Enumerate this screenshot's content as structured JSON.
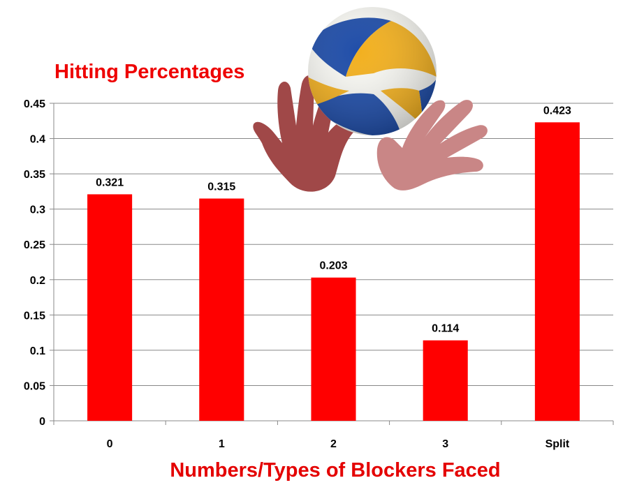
{
  "chart_data": {
    "type": "bar",
    "title": "Hitting Percentages",
    "xlabel": "Numbers/Types of Blockers Faced",
    "ylabel": "",
    "categories": [
      "0",
      "1",
      "2",
      "3",
      "Split"
    ],
    "values": [
      0.321,
      0.315,
      0.203,
      0.114,
      0.423
    ],
    "data_labels": [
      "0.321",
      "0.315",
      "0.203",
      "0.114",
      "0.423"
    ],
    "ylim": [
      0,
      0.45
    ],
    "yticks": [
      "0",
      "0.05",
      "0.1",
      "0.15",
      "0.2",
      "0.25",
      "0.3",
      "0.35",
      "0.4",
      "0.45"
    ],
    "grid": true,
    "legend": "none"
  },
  "colors": {
    "bar": "#ff0000",
    "title": "#ee0000",
    "xlabel": "#e40000",
    "grid": "#888888"
  },
  "decoration": {
    "illustration": "volleyball-and-blocking-hands"
  }
}
